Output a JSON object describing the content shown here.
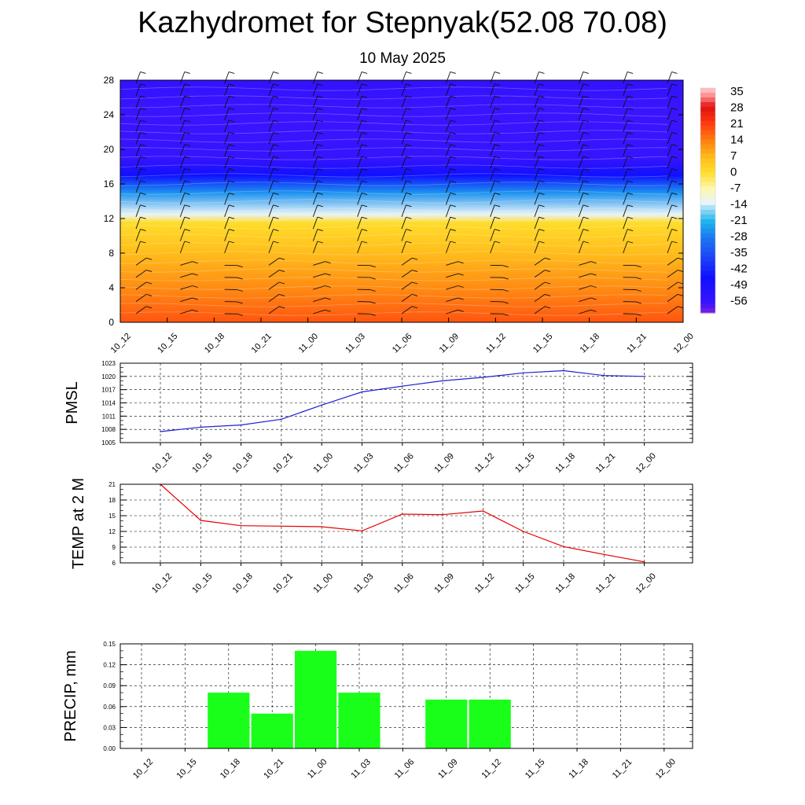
{
  "header": {
    "title": "Kazhydromet for Stepnyak(52.08 70.08)",
    "date": "10 May 2025"
  },
  "colors": {
    "pmsl_line": "#1f1fd6",
    "temp_line": "#e60000",
    "precip_bar": "#1aff1a"
  },
  "chart_data": [
    {
      "type": "heatmap",
      "title": "",
      "x_labels": [
        "10_12",
        "10_15",
        "10_18",
        "10_21",
        "11_00",
        "11_03",
        "11_06",
        "11_09",
        "11_12",
        "11_15",
        "11_18",
        "11_21",
        "12_00"
      ],
      "y_ticks": [
        0,
        4,
        8,
        12,
        16,
        20,
        24,
        28
      ],
      "ylim": [
        0,
        28
      ],
      "colorbar_labels": [
        "35",
        "28",
        "21",
        "14",
        "7",
        "0",
        "-7",
        "-14",
        "-21",
        "-28",
        "-35",
        "-42",
        "-49",
        "-56"
      ],
      "colorbar_range": [
        -60,
        36
      ],
      "temperature_profile": [
        {
          "level": 0,
          "value": 18
        },
        {
          "level": 4,
          "value": 12
        },
        {
          "level": 8,
          "value": 6
        },
        {
          "level": 11.5,
          "value": 0
        },
        {
          "level": 12.5,
          "value": -13
        },
        {
          "level": 15,
          "value": -25
        },
        {
          "level": 17,
          "value": -45
        },
        {
          "level": 19,
          "value": -55
        },
        {
          "level": 24,
          "value": -56
        },
        {
          "level": 28,
          "value": -54
        }
      ],
      "overlay": "wind barbs",
      "grid": false
    },
    {
      "type": "line",
      "ylabel": "PMSL",
      "x_labels": [
        "10_12",
        "10_15",
        "10_18",
        "10_21",
        "11_00",
        "11_03",
        "11_06",
        "11_09",
        "11_12",
        "11_15",
        "11_18",
        "11_21",
        "12_00"
      ],
      "y_ticks": [
        1005,
        1008,
        1011,
        1014,
        1017,
        1020,
        1023
      ],
      "ylim": [
        1005,
        1023
      ],
      "series": [
        {
          "values": [
            1007.5,
            1008.5,
            1009.0,
            1010.3,
            1013.5,
            1016.5,
            1017.8,
            1019.0,
            1019.8,
            1020.8,
            1021.3,
            1020.2,
            1020.0
          ]
        }
      ],
      "grid": true
    },
    {
      "type": "line",
      "ylabel": "TEMP at 2 M",
      "x_labels": [
        "10_12",
        "10_15",
        "10_18",
        "10_21",
        "11_00",
        "11_03",
        "11_06",
        "11_09",
        "11_12",
        "11_15",
        "11_18",
        "11_21",
        "12_00"
      ],
      "y_ticks": [
        6,
        9,
        12,
        15,
        18,
        21
      ],
      "ylim": [
        6,
        21
      ],
      "series": [
        {
          "values": [
            21.0,
            14.1,
            13.1,
            13.0,
            12.9,
            12.1,
            15.3,
            15.2,
            15.9,
            12.0,
            9.1,
            7.6,
            6.2
          ]
        }
      ],
      "grid": true
    },
    {
      "type": "bar",
      "ylabel": "PRECIP, mm",
      "categories": [
        "10_12",
        "10_15",
        "10_18",
        "10_21",
        "11_00",
        "11_03",
        "11_06",
        "11_09",
        "11_12",
        "11_15",
        "11_18",
        "11_21",
        "12_00"
      ],
      "values": [
        0,
        0,
        0.08,
        0.05,
        0.14,
        0.08,
        0,
        0.07,
        0.07,
        0,
        0,
        0,
        0
      ],
      "y_tick_labels": [
        "0.00",
        "0.03",
        "0.06",
        "0.09",
        "0.12",
        "0.15"
      ],
      "ylim": [
        0,
        0.15
      ],
      "grid": true
    }
  ]
}
